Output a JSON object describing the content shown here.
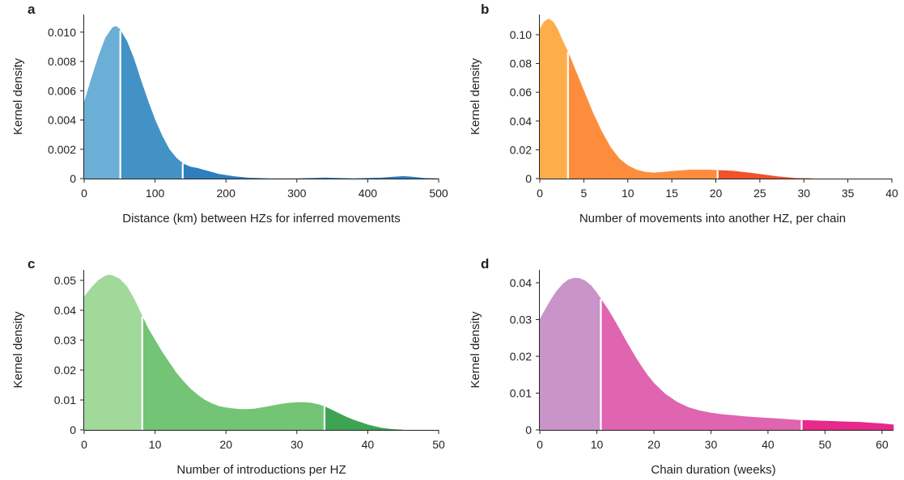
{
  "chart_data": [
    {
      "panel": "a",
      "type": "area",
      "xlabel": "Distance (km) between HZs for inferred movements",
      "ylabel": "Kernel density",
      "xlim": [
        0,
        500
      ],
      "ylim": [
        0,
        0.0112
      ],
      "xticks": [
        0,
        100,
        200,
        300,
        400,
        500
      ],
      "xtick_labels": [
        "0",
        "100",
        "200",
        "300",
        "400",
        "500"
      ],
      "yticks": [
        0,
        0.002,
        0.004,
        0.006,
        0.008,
        0.01
      ],
      "ytick_labels": [
        "0",
        "0.002",
        "0.004",
        "0.006",
        "0.008",
        "0.010"
      ],
      "quantiles": [
        51,
        139
      ],
      "colors": [
        "#6baed6",
        "#4292c6",
        "#2f7fbf"
      ],
      "points": [
        [
          0,
          0.0052
        ],
        [
          10,
          0.0068
        ],
        [
          20,
          0.0083
        ],
        [
          30,
          0.0096
        ],
        [
          40,
          0.0103
        ],
        [
          45,
          0.0104
        ],
        [
          50,
          0.0102
        ],
        [
          60,
          0.0094
        ],
        [
          70,
          0.0082
        ],
        [
          80,
          0.0067
        ],
        [
          90,
          0.0053
        ],
        [
          100,
          0.004
        ],
        [
          110,
          0.0029
        ],
        [
          120,
          0.002
        ],
        [
          130,
          0.0014
        ],
        [
          140,
          0.001
        ],
        [
          150,
          0.0008
        ],
        [
          160,
          0.0007
        ],
        [
          175,
          0.0005
        ],
        [
          190,
          0.0003
        ],
        [
          210,
          0.00015
        ],
        [
          230,
          5e-05
        ],
        [
          260,
          0.0
        ],
        [
          300,
          0.0
        ],
        [
          340,
          5e-05
        ],
        [
          380,
          0.0
        ],
        [
          420,
          5e-05
        ],
        [
          440,
          0.00012
        ],
        [
          450,
          0.00015
        ],
        [
          460,
          0.00012
        ],
        [
          480,
          2e-05
        ],
        [
          500,
          0.0
        ]
      ]
    },
    {
      "panel": "b",
      "type": "area",
      "xlabel": "Number of movements into another HZ, per chain",
      "ylabel": "Kernel density",
      "xlim": [
        0,
        40
      ],
      "ylim": [
        0,
        0.114
      ],
      "xticks": [
        0,
        5,
        10,
        15,
        20,
        25,
        30,
        35,
        40
      ],
      "xtick_labels": [
        "0",
        "5",
        "10",
        "15",
        "20",
        "25",
        "30",
        "35",
        "40"
      ],
      "yticks": [
        0,
        0.02,
        0.04,
        0.06,
        0.08,
        0.1
      ],
      "ytick_labels": [
        "0",
        "0.02",
        "0.04",
        "0.06",
        "0.08",
        "0.10"
      ],
      "quantiles": [
        3.2,
        20.2
      ],
      "colors": [
        "#fdae4b",
        "#fd8d3c",
        "#f0522a"
      ],
      "points": [
        [
          0,
          0.104
        ],
        [
          0.5,
          0.109
        ],
        [
          1,
          0.111
        ],
        [
          1.5,
          0.109
        ],
        [
          2,
          0.104
        ],
        [
          2.5,
          0.097
        ],
        [
          3.2,
          0.088
        ],
        [
          4,
          0.076
        ],
        [
          5,
          0.061
        ],
        [
          6,
          0.046
        ],
        [
          7,
          0.033
        ],
        [
          8,
          0.022
        ],
        [
          9,
          0.014
        ],
        [
          10,
          0.009
        ],
        [
          11,
          0.006
        ],
        [
          12,
          0.0045
        ],
        [
          13,
          0.004
        ],
        [
          14,
          0.0045
        ],
        [
          15,
          0.005
        ],
        [
          16,
          0.0055
        ],
        [
          17,
          0.006
        ],
        [
          18,
          0.006
        ],
        [
          19,
          0.006
        ],
        [
          20,
          0.0058
        ],
        [
          21,
          0.0055
        ],
        [
          22,
          0.0052
        ],
        [
          23,
          0.0045
        ],
        [
          24,
          0.0038
        ],
        [
          25,
          0.003
        ],
        [
          26,
          0.0022
        ],
        [
          27,
          0.0014
        ],
        [
          28,
          0.0008
        ],
        [
          29,
          0.0003
        ],
        [
          30,
          0.0001
        ],
        [
          31,
          0.0
        ]
      ]
    },
    {
      "panel": "c",
      "type": "area",
      "xlabel": "Number of introductions per HZ",
      "ylabel": "Kernel density",
      "xlim": [
        0,
        50
      ],
      "ylim": [
        0,
        0.0535
      ],
      "xticks": [
        0,
        10,
        20,
        30,
        40,
        50
      ],
      "xtick_labels": [
        "0",
        "10",
        "20",
        "30",
        "40",
        "50"
      ],
      "yticks": [
        0,
        0.01,
        0.02,
        0.03,
        0.04,
        0.05
      ],
      "ytick_labels": [
        "0",
        "0.01",
        "0.02",
        "0.03",
        "0.04",
        "0.05"
      ],
      "quantiles": [
        8.2,
        33.9
      ],
      "colors": [
        "#a1d99b",
        "#74c476",
        "#3ea454"
      ],
      "points": [
        [
          0,
          0.0445
        ],
        [
          1,
          0.0475
        ],
        [
          2,
          0.05
        ],
        [
          3,
          0.0515
        ],
        [
          3.5,
          0.0518
        ],
        [
          4,
          0.0516
        ],
        [
          5,
          0.0505
        ],
        [
          6,
          0.048
        ],
        [
          7,
          0.044
        ],
        [
          8.2,
          0.038
        ],
        [
          9,
          0.034
        ],
        [
          10,
          0.03
        ],
        [
          11,
          0.026
        ],
        [
          12,
          0.0225
        ],
        [
          13,
          0.019
        ],
        [
          14,
          0.0162
        ],
        [
          15,
          0.0137
        ],
        [
          16,
          0.0117
        ],
        [
          17,
          0.01
        ],
        [
          18,
          0.0088
        ],
        [
          19,
          0.0079
        ],
        [
          20,
          0.0074
        ],
        [
          21,
          0.0071
        ],
        [
          22,
          0.0069
        ],
        [
          23,
          0.0069
        ],
        [
          24,
          0.007
        ],
        [
          25,
          0.0074
        ],
        [
          26,
          0.0078
        ],
        [
          27,
          0.0083
        ],
        [
          28,
          0.0087
        ],
        [
          29,
          0.009
        ],
        [
          30,
          0.0092
        ],
        [
          31,
          0.0092
        ],
        [
          32,
          0.009
        ],
        [
          33,
          0.0085
        ],
        [
          33.9,
          0.0078
        ],
        [
          35,
          0.0066
        ],
        [
          36,
          0.0054
        ],
        [
          37,
          0.0043
        ],
        [
          38,
          0.0033
        ],
        [
          39,
          0.0025
        ],
        [
          40,
          0.0017
        ],
        [
          41,
          0.0011
        ],
        [
          42,
          0.0006
        ],
        [
          43,
          0.0003
        ],
        [
          44,
          0.0001
        ],
        [
          45,
          0.0
        ]
      ]
    },
    {
      "panel": "d",
      "type": "area",
      "xlabel": "Chain duration (weeks)",
      "ylabel": "Kernel density",
      "xlim": [
        0,
        62
      ],
      "ylim": [
        0,
        0.0435
      ],
      "xticks": [
        0,
        10,
        20,
        30,
        40,
        50,
        60
      ],
      "xtick_labels": [
        "0",
        "10",
        "20",
        "30",
        "40",
        "50",
        "60"
      ],
      "yticks": [
        0,
        0.01,
        0.02,
        0.03,
        0.04
      ],
      "ytick_labels": [
        "0",
        "0.01",
        "0.02",
        "0.03",
        "0.04"
      ],
      "quantiles": [
        10.7,
        45.9
      ],
      "colors": [
        "#c994c7",
        "#df65b0",
        "#e7298a"
      ],
      "points": [
        [
          0,
          0.03
        ],
        [
          1,
          0.0328
        ],
        [
          2,
          0.0355
        ],
        [
          3,
          0.0378
        ],
        [
          4,
          0.0396
        ],
        [
          5,
          0.0408
        ],
        [
          6,
          0.0413
        ],
        [
          7,
          0.0412
        ],
        [
          8,
          0.0405
        ],
        [
          9,
          0.0392
        ],
        [
          10,
          0.0372
        ],
        [
          10.7,
          0.0356
        ],
        [
          12,
          0.0326
        ],
        [
          13,
          0.03
        ],
        [
          14,
          0.0273
        ],
        [
          15,
          0.0245
        ],
        [
          16,
          0.0218
        ],
        [
          17,
          0.0192
        ],
        [
          18,
          0.0168
        ],
        [
          19,
          0.0146
        ],
        [
          20,
          0.0127
        ],
        [
          22,
          0.0097
        ],
        [
          24,
          0.0076
        ],
        [
          26,
          0.0061
        ],
        [
          28,
          0.0052
        ],
        [
          30,
          0.0046
        ],
        [
          32,
          0.0042
        ],
        [
          34,
          0.0039
        ],
        [
          36,
          0.0036
        ],
        [
          38,
          0.0034
        ],
        [
          40,
          0.0032
        ],
        [
          42,
          0.003
        ],
        [
          44,
          0.0028
        ],
        [
          45.9,
          0.0026
        ],
        [
          48,
          0.0025
        ],
        [
          50,
          0.0024
        ],
        [
          52,
          0.0023
        ],
        [
          54,
          0.0022
        ],
        [
          56,
          0.0021
        ],
        [
          58,
          0.0019
        ],
        [
          60,
          0.0017
        ],
        [
          62,
          0.0014
        ]
      ]
    }
  ]
}
